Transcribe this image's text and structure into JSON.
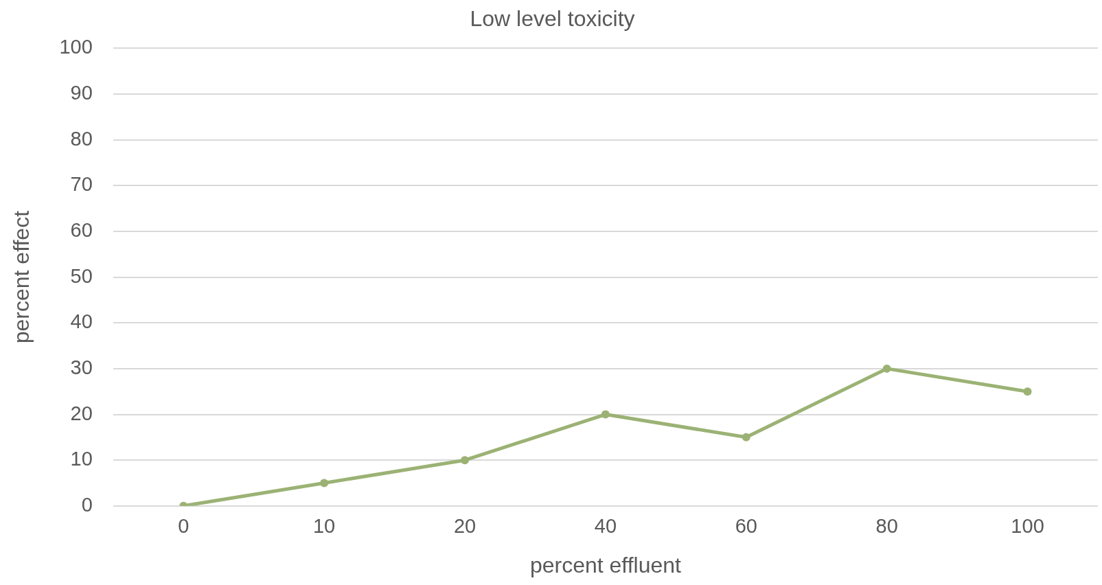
{
  "chart_data": {
    "type": "line",
    "title": "Low level toxicity",
    "xlabel": "percent effluent",
    "ylabel": "percent effect",
    "categories": [
      "0",
      "10",
      "20",
      "40",
      "60",
      "80",
      "100"
    ],
    "series": [
      {
        "color": "#9bb274",
        "values": [
          0,
          5,
          10,
          20,
          15,
          30,
          25
        ]
      }
    ],
    "ylim": [
      0,
      100
    ],
    "yticks": [
      0,
      10,
      20,
      30,
      40,
      50,
      60,
      70,
      80,
      90,
      100
    ],
    "grid": "y",
    "legend": false,
    "marker": "circle",
    "line_style": "solid"
  }
}
